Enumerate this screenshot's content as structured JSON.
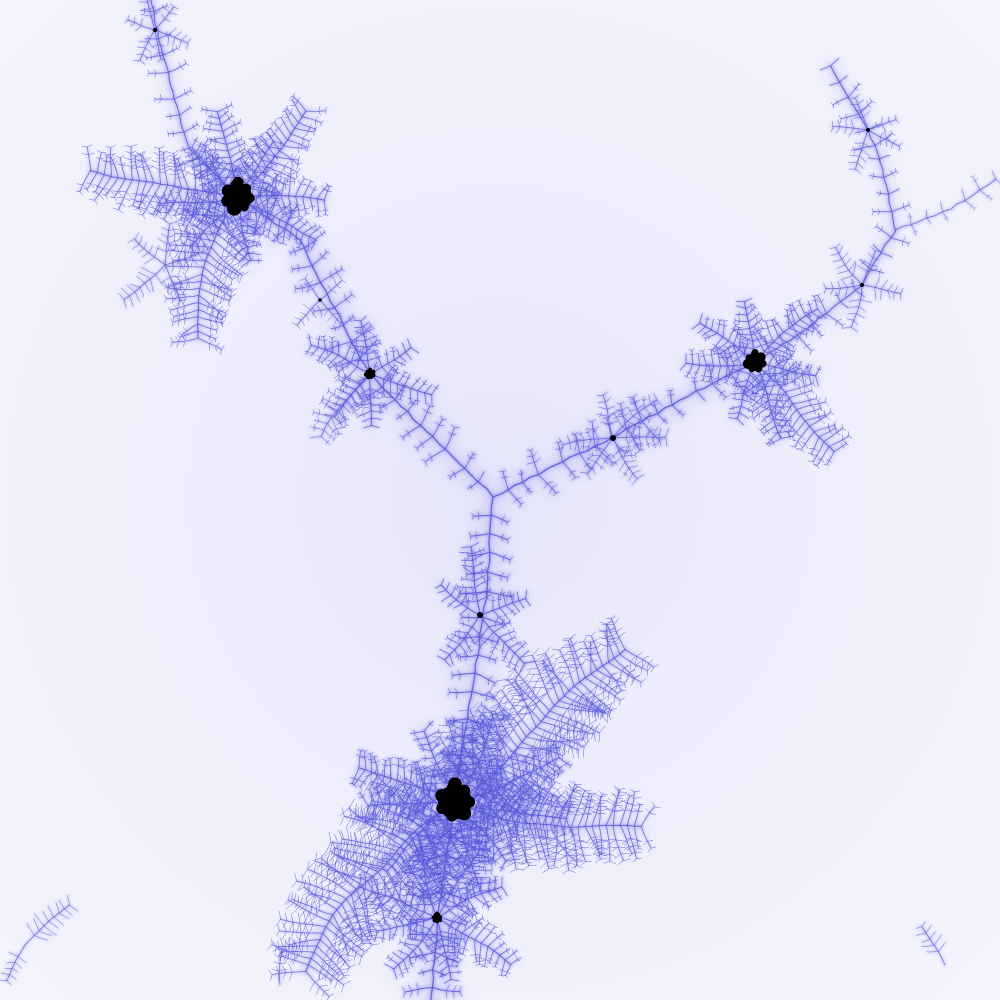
{
  "image": {
    "subject": "mandelbrot-set-fractal-detail",
    "colors": {
      "background": "#efeffc",
      "halo": "#c9c9f6",
      "filament": "#7b7be6",
      "filament_core": "#5656d8",
      "bulb": "#000000"
    },
    "bulb_count": 11
  }
}
